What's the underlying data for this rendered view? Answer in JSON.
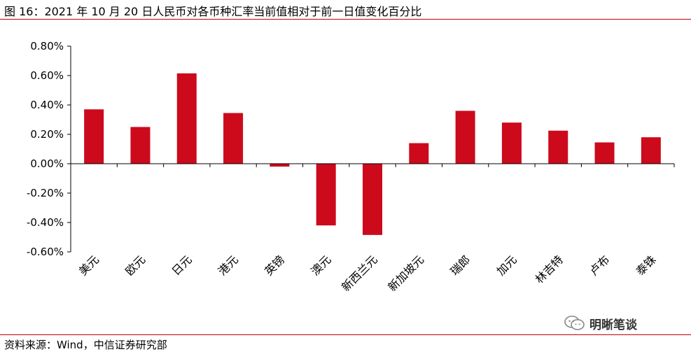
{
  "header": {
    "title": "图 16：2021 年 10 月 20 日人民币对各币种汇率当前值相对于前一日值变化百分比"
  },
  "footer": {
    "source": "资料来源：Wind，中信证券研究部"
  },
  "watermark": {
    "text": "明晰笔谈",
    "icon": "wechat-icon"
  },
  "colors": {
    "bar": "#cc0a1c",
    "rule": "#c00000",
    "axis": "#000000"
  },
  "chart_data": {
    "type": "bar",
    "categories": [
      "美元",
      "欧元",
      "日元",
      "港元",
      "英镑",
      "澳元",
      "新西兰元",
      "新加坡元",
      "瑞郎",
      "加元",
      "林吉特",
      "卢布",
      "泰铢"
    ],
    "values": [
      0.37,
      0.25,
      0.615,
      0.345,
      -0.02,
      -0.42,
      -0.485,
      0.14,
      0.36,
      0.28,
      0.225,
      0.145,
      0.18
    ],
    "yticks": [
      "0.80%",
      "0.60%",
      "0.40%",
      "0.20%",
      "0.00%",
      "-0.20%",
      "-0.40%",
      "-0.60%"
    ],
    "ylim": [
      -0.6,
      0.8
    ],
    "title": "",
    "xlabel": "",
    "ylabel": "",
    "grid": false,
    "legend": "none"
  }
}
